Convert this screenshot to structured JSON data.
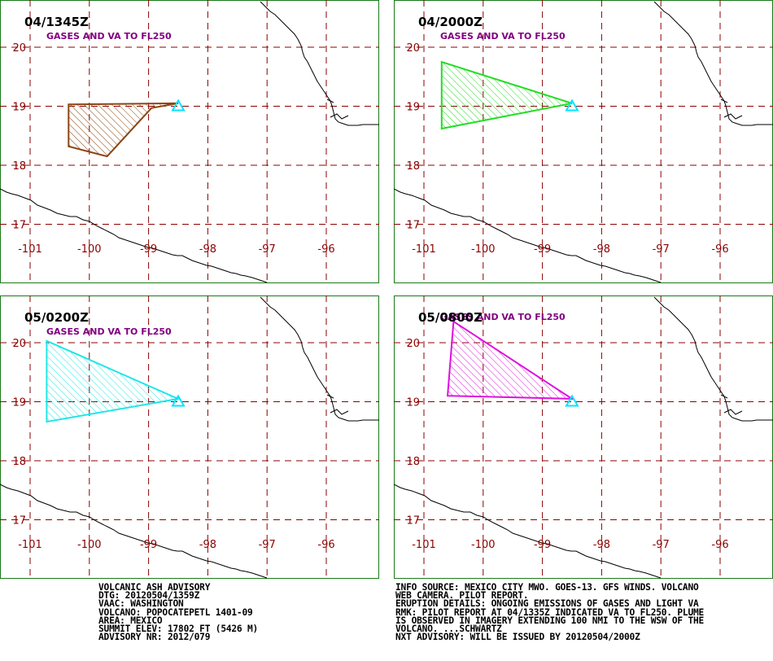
{
  "colors": {
    "frame": "#1a7a1a",
    "grid": "#8b0000",
    "tick_label": "#8b0000",
    "coast": "#000000",
    "volcano": "#00e5ff",
    "subtitle": "#800080"
  },
  "map": {
    "lon_ticks": [
      "-101",
      "-100",
      "-99",
      "-98",
      "-97",
      "-96"
    ],
    "lat_ticks": [
      "20",
      "19",
      "18",
      "17"
    ]
  },
  "panels": [
    {
      "time": "04/1345Z",
      "subtitle": "GASES AND VA TO FL250",
      "color": "#8b4513",
      "polygon": [
        [
          -100.35,
          19.03
        ],
        [
          -98.5,
          19.05
        ],
        [
          -98.95,
          18.97
        ],
        [
          -99.7,
          18.15
        ],
        [
          -100.35,
          18.32
        ]
      ]
    },
    {
      "time": "04/2000Z",
      "subtitle": "GASES AND VA TO FL250",
      "color": "#22dd22",
      "polygon": [
        [
          -100.7,
          19.75
        ],
        [
          -98.5,
          19.05
        ],
        [
          -100.7,
          18.62
        ]
      ]
    },
    {
      "time": "05/0200Z",
      "subtitle": "GASES AND VA TO FL250",
      "color": "#22e6e6",
      "polygon": [
        [
          -100.72,
          20.03
        ],
        [
          -98.5,
          19.05
        ],
        [
          -100.72,
          18.66
        ]
      ]
    },
    {
      "time": "05/0800Z",
      "subtitle": "GASES AND VA TO FL250",
      "color": "#dd11dd",
      "polygon": [
        [
          -100.5,
          20.36
        ],
        [
          -98.5,
          19.05
        ],
        [
          -100.6,
          19.1
        ]
      ]
    }
  ],
  "advisory_left": [
    "VOLCANIC ASH ADVISORY",
    "DTG: 20120504/1359Z",
    "VAAC: WASHINGTON",
    "VOLCANO: POPOCATEPETL 1401-09",
    "AREA: MEXICO",
    "SUMMIT ELEV: 17802 FT (5426 M)",
    "ADVISORY NR: 2012/079"
  ],
  "advisory_right": [
    "INFO SOURCE: MEXICO CITY MWO. GOES-13. GFS WINDS. VOLCANO",
    "WEB CAMERA. PILOT REPORT.",
    "ERUPTION DETAILS: ONGOING EMISSIONS OF GASES AND LIGHT VA",
    "RMK: PILOT REPORT AT 04/1335Z INDICATED VA TO FL250. PLUME",
    "IS OBSERVED IN IMAGERY EXTENDING 100 NMI TO THE WSW OF THE",
    "VOLCANO. ...SCHWARTZ",
    "NXT ADVISORY: WILL BE ISSUED BY 20120504/2000Z"
  ]
}
